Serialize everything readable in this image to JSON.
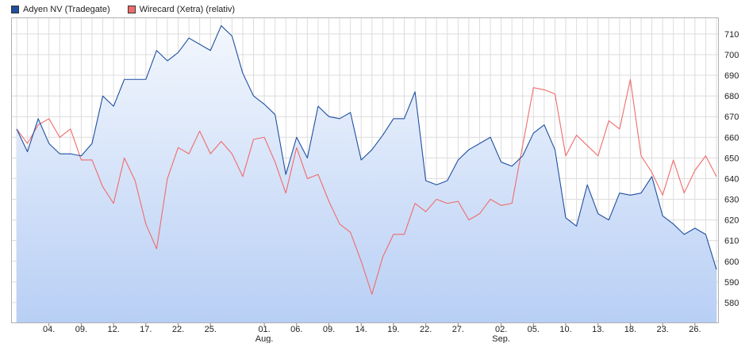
{
  "chart_data": {
    "type": "line",
    "title": "",
    "xlabel": "",
    "ylabel": "",
    "ylim": [
      570,
      718
    ],
    "y_ticks": [
      580,
      590,
      600,
      610,
      620,
      630,
      640,
      650,
      660,
      670,
      680,
      690,
      700,
      710
    ],
    "grid": true,
    "legend_position": "top-left",
    "x_tick_labels": [
      {
        "index": 3,
        "label": "04."
      },
      {
        "index": 6,
        "label": "09."
      },
      {
        "index": 9,
        "label": "12."
      },
      {
        "index": 12,
        "label": "17."
      },
      {
        "index": 15,
        "label": "22."
      },
      {
        "index": 18,
        "label": "25."
      },
      {
        "index": 23,
        "label": "01.",
        "sub": "Aug."
      },
      {
        "index": 26,
        "label": "06."
      },
      {
        "index": 29,
        "label": "09."
      },
      {
        "index": 32,
        "label": "14."
      },
      {
        "index": 35,
        "label": "19."
      },
      {
        "index": 38,
        "label": "22."
      },
      {
        "index": 41,
        "label": "27."
      },
      {
        "index": 45,
        "label": "02.",
        "sub": "Sep."
      },
      {
        "index": 48,
        "label": "05."
      },
      {
        "index": 51,
        "label": "10."
      },
      {
        "index": 54,
        "label": "13."
      },
      {
        "index": 57,
        "label": "18."
      },
      {
        "index": 60,
        "label": "23."
      },
      {
        "index": 63,
        "label": "26."
      }
    ],
    "series": [
      {
        "name": "Adyen NV (Tradegate)",
        "color": "#1f4fa0",
        "values": [
          664,
          653,
          669,
          657,
          652,
          652,
          651,
          657,
          680,
          675,
          688,
          688,
          688,
          702,
          697,
          701,
          708,
          705,
          702,
          714,
          709,
          691,
          680,
          676,
          671,
          642,
          660,
          650,
          675,
          670,
          669,
          672,
          649,
          654,
          661,
          669,
          669,
          682,
          639,
          637,
          639,
          649,
          654,
          657,
          660,
          648,
          646,
          651,
          662,
          666,
          654,
          621,
          617,
          637,
          623,
          620,
          633,
          632,
          633,
          641,
          622,
          618,
          613,
          616,
          613,
          596
        ]
      },
      {
        "name": "Wirecard (Xetra) (relativ)",
        "color": "#f06b6b",
        "values": [
          664,
          657,
          666,
          669,
          660,
          664,
          649,
          649,
          636,
          628,
          650,
          639,
          618,
          606,
          640,
          655,
          652,
          663,
          652,
          658,
          652,
          641,
          659,
          660,
          648,
          633,
          655,
          640,
          642,
          629,
          618,
          614,
          600,
          584,
          602,
          613,
          613,
          628,
          624,
          630,
          628,
          629,
          620,
          623,
          630,
          627,
          628,
          656,
          684,
          683,
          681,
          651,
          661,
          656,
          651,
          668,
          664,
          688,
          651,
          643,
          632,
          649,
          633,
          644,
          651,
          641
        ]
      }
    ]
  }
}
